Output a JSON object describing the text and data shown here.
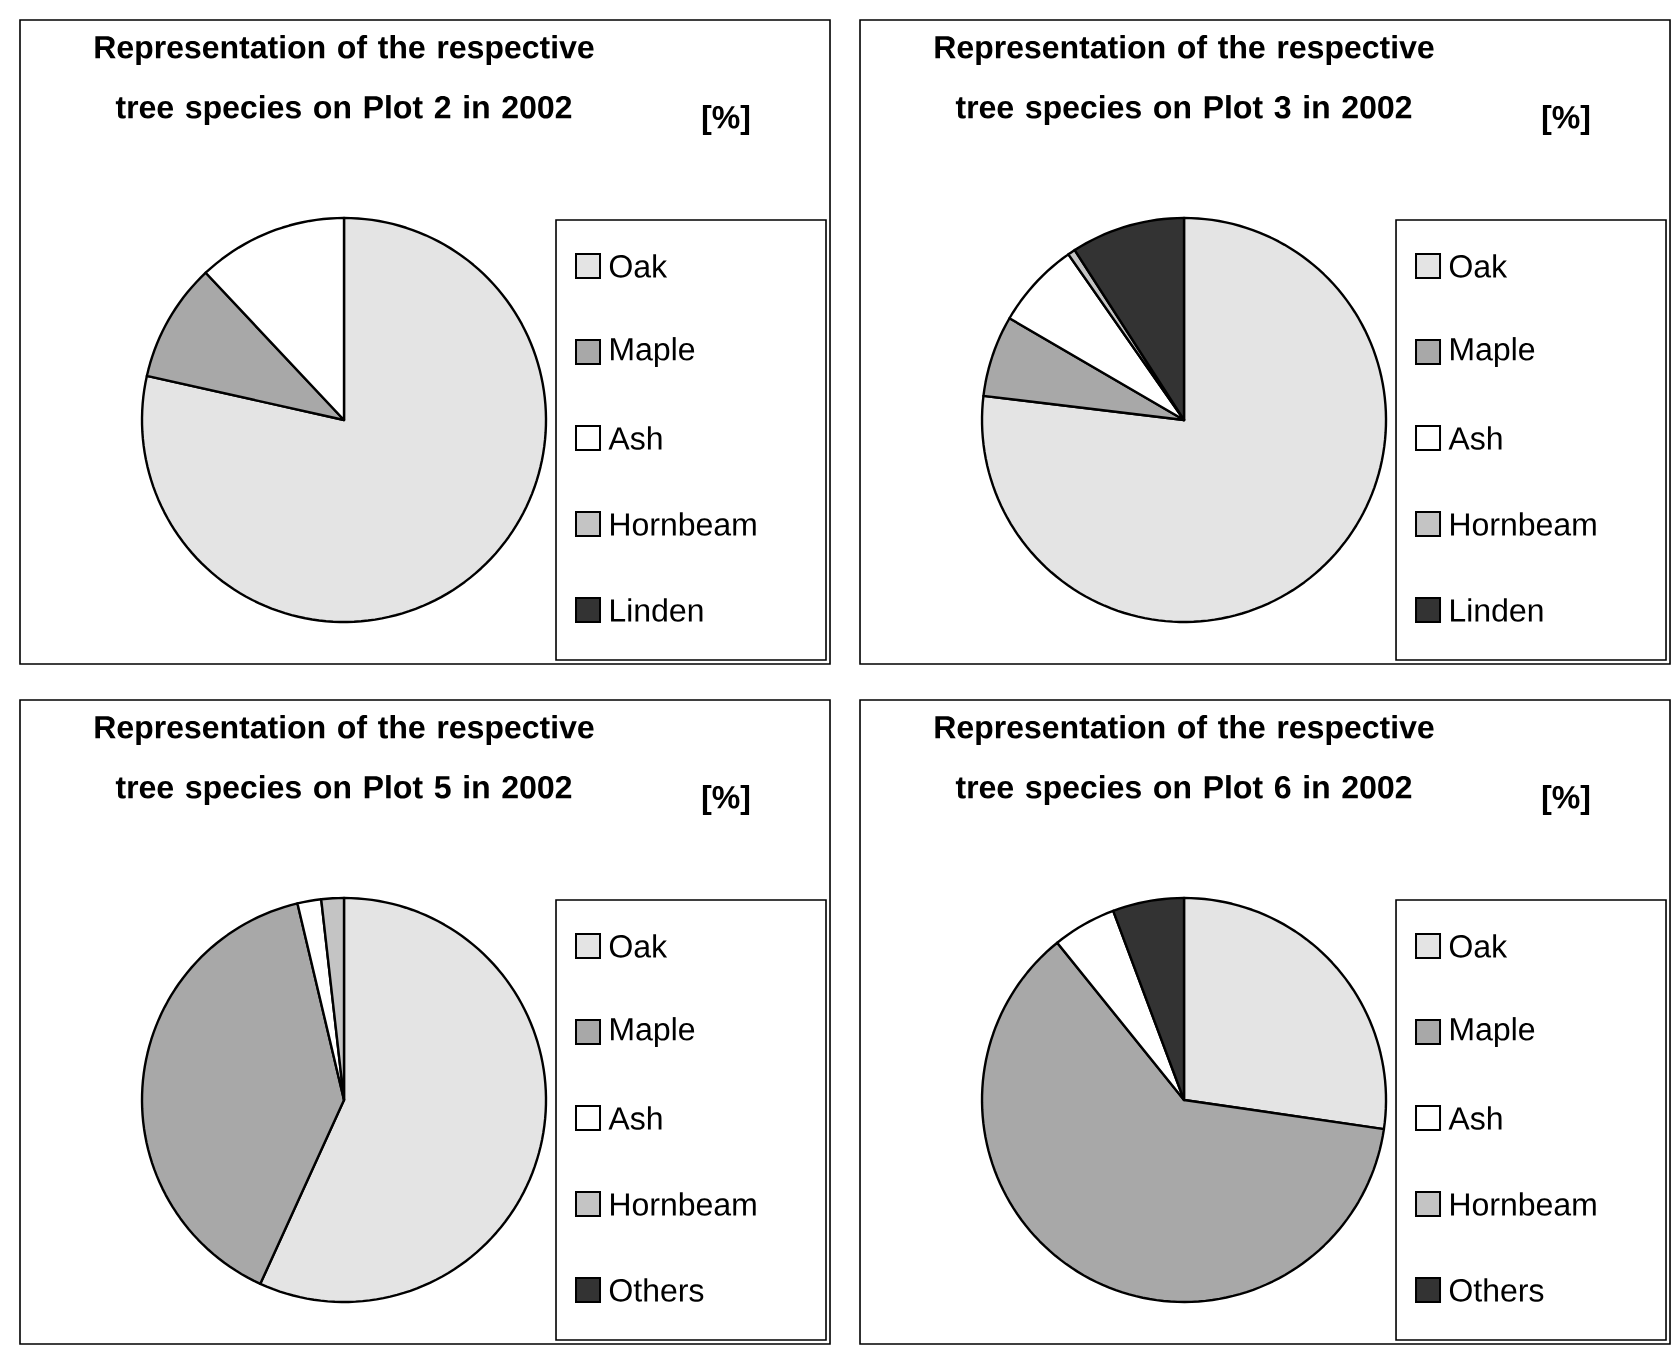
{
  "chart_data": [
    {
      "type": "pie",
      "title": "Representation of the respective tree species on Plot 2 in 2002",
      "subtitle": "[%]",
      "categories": [
        "Oak",
        "Maple",
        "Ash",
        "Hornbeam",
        "Linden"
      ],
      "values": [
        78.5,
        9.5,
        12,
        0,
        0
      ],
      "colors": [
        "#e4e4e4",
        "#a8a8a8",
        "#ffffff",
        "#c4c4c4",
        "#333333"
      ],
      "legend": "right"
    },
    {
      "type": "pie",
      "title": "Representation of the respective tree species on Plot 3 in 2002",
      "subtitle": "[%]",
      "categories": [
        "Oak",
        "Maple",
        "Ash",
        "Hornbeam",
        "Linden"
      ],
      "values": [
        76.9,
        6.5,
        6.9,
        0.6,
        9.1
      ],
      "colors": [
        "#e4e4e4",
        "#a8a8a8",
        "#ffffff",
        "#c4c4c4",
        "#333333"
      ],
      "legend": "right"
    },
    {
      "type": "pie",
      "title": "Representation of the respective tree species on Plot 5 in 2002",
      "subtitle": "[%]",
      "categories": [
        "Oak",
        "Maple",
        "Ash",
        "Hornbeam",
        "Others"
      ],
      "values": [
        56.8,
        39.5,
        1.9,
        1.8,
        0
      ],
      "colors": [
        "#e4e4e4",
        "#a8a8a8",
        "#ffffff",
        "#c4c4c4",
        "#333333"
      ],
      "legend": "right"
    },
    {
      "type": "pie",
      "title": "Representation of the respective tree species on Plot 6 in 2002",
      "subtitle": "[%]",
      "categories": [
        "Oak",
        "Maple",
        "Ash",
        "Hornbeam",
        "Others"
      ],
      "values": [
        27.3,
        61.9,
        5.1,
        0,
        5.7
      ],
      "colors": [
        "#e4e4e4",
        "#a8a8a8",
        "#ffffff",
        "#c4c4c4",
        "#333333"
      ],
      "legend": "right"
    }
  ]
}
